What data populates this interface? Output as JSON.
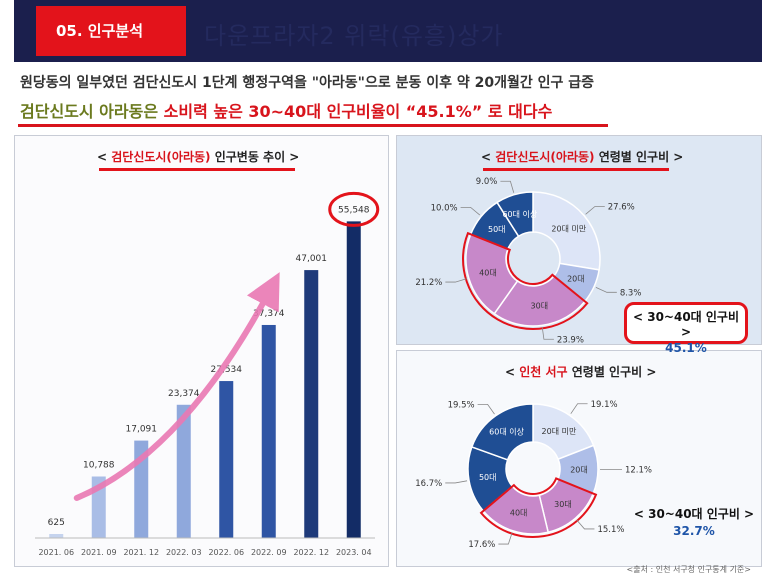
{
  "header": {
    "tag": "05. 인구분석",
    "ghost_title": "다운프라자2 위락(유흥)상가"
  },
  "intro": {
    "line1": "원당동의 일부였던 검단신도시 1단계 행정구역을 \"아라동\"으로 분동 이후 약 20개월간 인구 급증",
    "line2_green": "검단신도시 아라동은",
    "line2_red": "소비력 높은 30~40대 인구비율이 “45.1%” 로 대다수"
  },
  "chart_data": [
    {
      "type": "bar",
      "title_prefix": "< ",
      "title_red": "검단신도시(아라동)",
      "title_rest": " 인구변동 추이 >",
      "categories": [
        "2021. 06",
        "2021. 09",
        "2021. 12",
        "2022. 03",
        "2022. 06",
        "2022. 09",
        "2022. 12",
        "2023. 04"
      ],
      "values": [
        625,
        10788,
        17091,
        23374,
        27534,
        37374,
        47001,
        55548
      ],
      "value_labels": [
        "625",
        "10,788",
        "17,091",
        "23,374",
        "27,534",
        "37,374",
        "47,001",
        "55,548"
      ],
      "bar_colors": [
        "#c5d3ee",
        "#a9bde6",
        "#8fa8dc",
        "#8fa8dc",
        "#2f55a4",
        "#2f55a4",
        "#1e3a7a",
        "#132c66"
      ],
      "highlight_index": 7,
      "highlight_color": "#e3131b",
      "trend_arrow_color": "#ea79b3",
      "ylim": [
        0,
        60000
      ]
    },
    {
      "type": "pie",
      "style": "donut",
      "title_prefix": "< ",
      "title_red": "검단신도시(아라동)",
      "title_rest": " 연령별 인구비 >",
      "slices": [
        {
          "label": "20대 미만",
          "value": 27.6,
          "pct_label": "27.6%",
          "color": "#dde5f7"
        },
        {
          "label": "20대",
          "value": 8.3,
          "pct_label": "8.3%",
          "color": "#aebee8"
        },
        {
          "label": "30대",
          "value": 23.9,
          "pct_label": "23.9%",
          "color": "#c788c9"
        },
        {
          "label": "40대",
          "value": 21.2,
          "pct_label": "21.2%",
          "color": "#c788c9"
        },
        {
          "label": "50대",
          "value": 10.0,
          "pct_label": "10.0%",
          "color": "#1f4e94"
        },
        {
          "label": "60대 이상",
          "value": 9.0,
          "pct_label": "9.0%",
          "color": "#1f4e94"
        }
      ],
      "highlight_slices": [
        2,
        3
      ],
      "callout_title": "< 30~40대 인구비 >",
      "callout_value": "45.1%"
    },
    {
      "type": "pie",
      "style": "donut",
      "title_prefix": "< ",
      "title_red": "인천 서구",
      "title_rest": " 연령별 인구비 >",
      "slices": [
        {
          "label": "20대 미만",
          "value": 19.1,
          "pct_label": "19.1%",
          "color": "#dde5f7"
        },
        {
          "label": "20대",
          "value": 12.1,
          "pct_label": "12.1%",
          "color": "#aebee8"
        },
        {
          "label": "30대",
          "value": 15.1,
          "pct_label": "15.1%",
          "color": "#c788c9"
        },
        {
          "label": "40대",
          "value": 17.6,
          "pct_label": "17.6%",
          "color": "#c788c9"
        },
        {
          "label": "50대",
          "value": 16.7,
          "pct_label": "16.7%",
          "color": "#1f4e94"
        },
        {
          "label": "60대 이상",
          "value": 19.5,
          "pct_label": "19.5%",
          "color": "#1f4e94"
        }
      ],
      "highlight_slices": [
        2,
        3
      ],
      "callout_title": "< 30~40대 인구비 >",
      "callout_value": "32.7%"
    }
  ],
  "source": "<출처 : 인천 서구청 인구통계 기준>"
}
